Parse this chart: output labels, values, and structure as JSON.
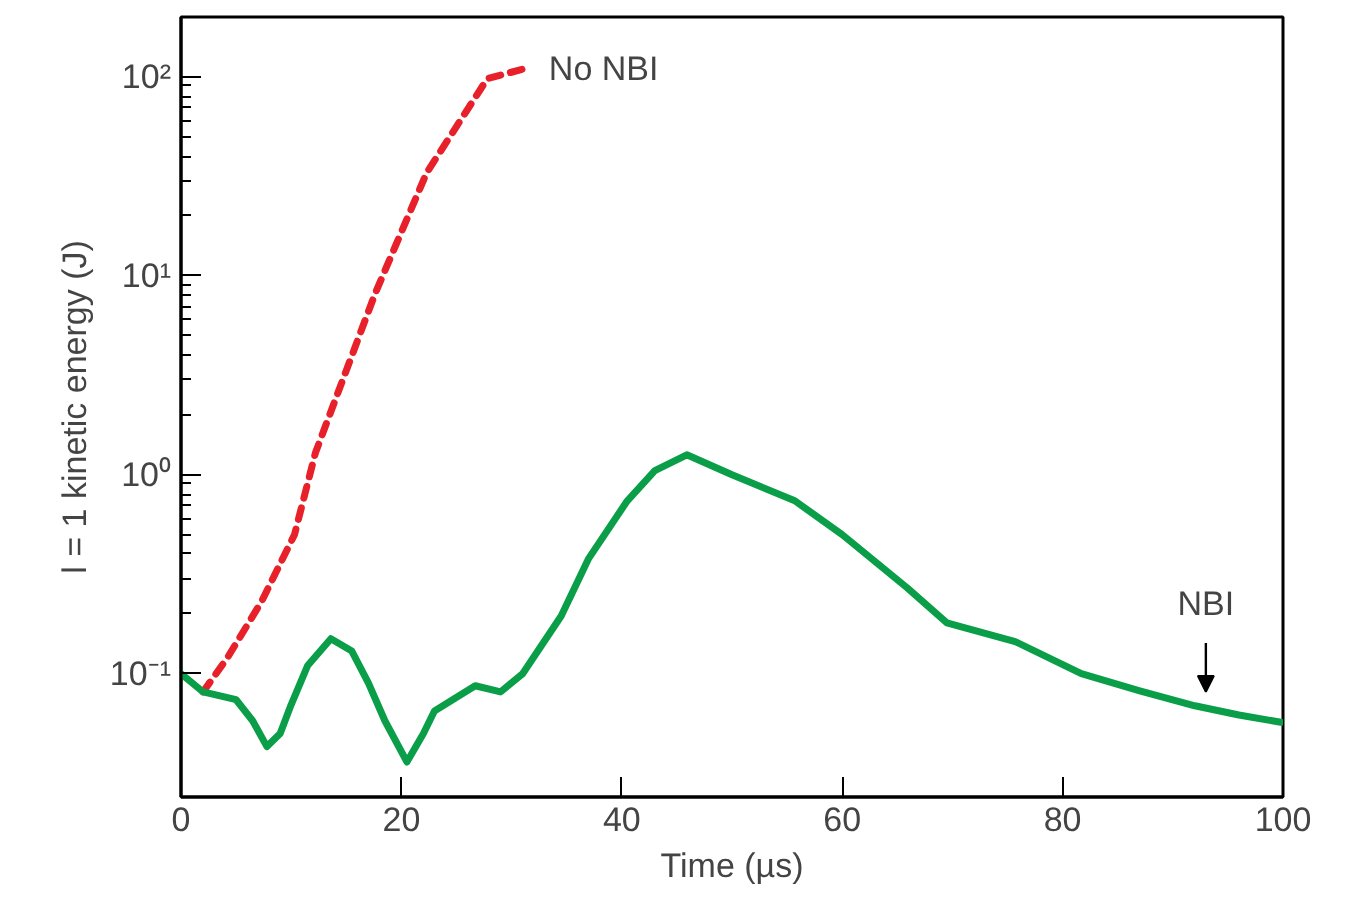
{
  "chart_data": {
    "type": "line",
    "xlabel": "Time (µs)",
    "ylabel": "l = 1 kinetic energy (J)",
    "log": "y",
    "grid": false,
    "xlim": [
      0,
      100
    ],
    "xticks": [
      0,
      20,
      40,
      60,
      80,
      100
    ],
    "ylim": [
      0.024,
      200
    ],
    "yticks": [
      {
        "value": 0.1,
        "label": "10⁻¹"
      },
      {
        "value": 1,
        "label": "10⁰"
      },
      {
        "value": 10,
        "label": "10¹"
      },
      {
        "value": 100,
        "label": "10²"
      }
    ],
    "series": [
      {
        "color": "#e8202a",
        "line_style": "dashed",
        "x": [
          2,
          4.2,
          7.3,
          10.3,
          12.2,
          17.6,
          22.3,
          27.8,
          31.2
        ],
        "values": [
          0.081,
          0.12,
          0.23,
          0.5,
          1.29,
          8.1,
          33,
          98,
          110
        ]
      },
      {
        "color": "#0a9e48",
        "line_style": "solid",
        "x": [
          0,
          2,
          5,
          6.5,
          7.8,
          9,
          10,
          11.5,
          13.6,
          15.5,
          17,
          18.5,
          20.5,
          22,
          23,
          26.7,
          29,
          31,
          34.5,
          37,
          40.5,
          43,
          45.9,
          50,
          55.7,
          60,
          65.9,
          69.5,
          75.7,
          81.7,
          87,
          92,
          96,
          99.8
        ],
        "values": [
          0.1,
          0.081,
          0.074,
          0.058,
          0.043,
          0.05,
          0.07,
          0.11,
          0.15,
          0.13,
          0.09,
          0.058,
          0.036,
          0.05,
          0.065,
          0.087,
          0.081,
          0.1,
          0.195,
          0.38,
          0.74,
          1.05,
          1.26,
          1.0,
          0.74,
          0.5,
          0.27,
          0.18,
          0.145,
          0.1,
          0.082,
          0.069,
          0.062,
          0.057
        ]
      }
    ],
    "annotations": [
      "No NBI",
      {
        "text": "NBI",
        "x": 93,
        "y": 0.075
      }
    ]
  }
}
